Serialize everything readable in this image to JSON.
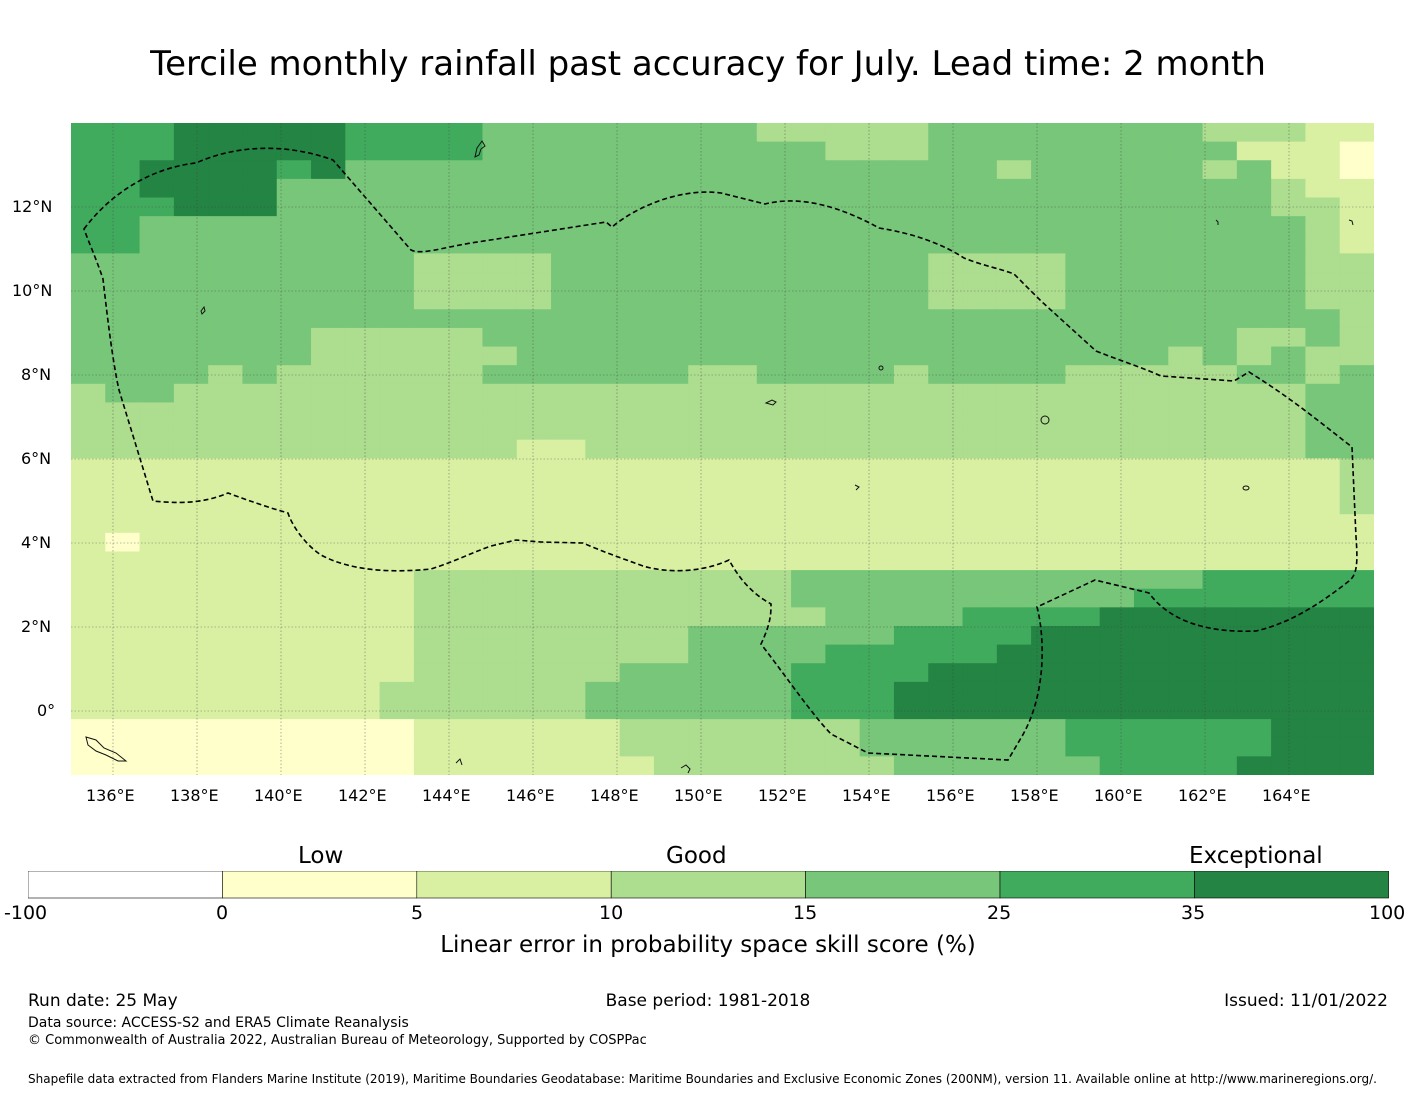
{
  "title": "Tercile monthly rainfall past accuracy for July. Lead time: 2 month",
  "map": {
    "lon_range": [
      135,
      166
    ],
    "lat_range": [
      -1.5,
      14
    ],
    "x_ticks": [
      "136°E",
      "138°E",
      "140°E",
      "142°E",
      "144°E",
      "146°E",
      "148°E",
      "150°E",
      "152°E",
      "154°E",
      "156°E",
      "158°E",
      "160°E",
      "162°E",
      "164°E"
    ],
    "y_ticks": [
      "12°N",
      "10°N",
      "8°N",
      "6°N",
      "4°N",
      "2°N",
      "0°"
    ],
    "boundary_line_style": "dashed black",
    "grid": "dotted"
  },
  "colorbar": {
    "categories": [
      "Low",
      "Good",
      "Exceptional"
    ],
    "ticks": [
      "-100",
      "0",
      "5",
      "10",
      "15",
      "25",
      "35",
      "100"
    ],
    "colors": [
      "#ffffff",
      "#ffffcc",
      "#d9f0a3",
      "#addd8e",
      "#78c679",
      "#41ab5d",
      "#238443"
    ],
    "label": "Linear error in probability space skill score (%)"
  },
  "footer": {
    "run_date": "Run date: 25 May",
    "base_period": "Base period: 1981-2018",
    "issued": "Issued: 11/01/2022",
    "data_source": "Data source: ACCESS-S2 and ERA5 Climate Reanalysis",
    "copyright": "© Commonwealth of Australia 2022, Australian Bureau of Meteorology, Supported by COSPPac",
    "shapefile": "Shapefile data extracted from Flanders Marine Institute (2019), Maritime Boundaries Geodatabase: Maritime Boundaries and Exclusive Economic Zones (200NM), version 11. Available online at http://www.marineregions.org/."
  }
}
